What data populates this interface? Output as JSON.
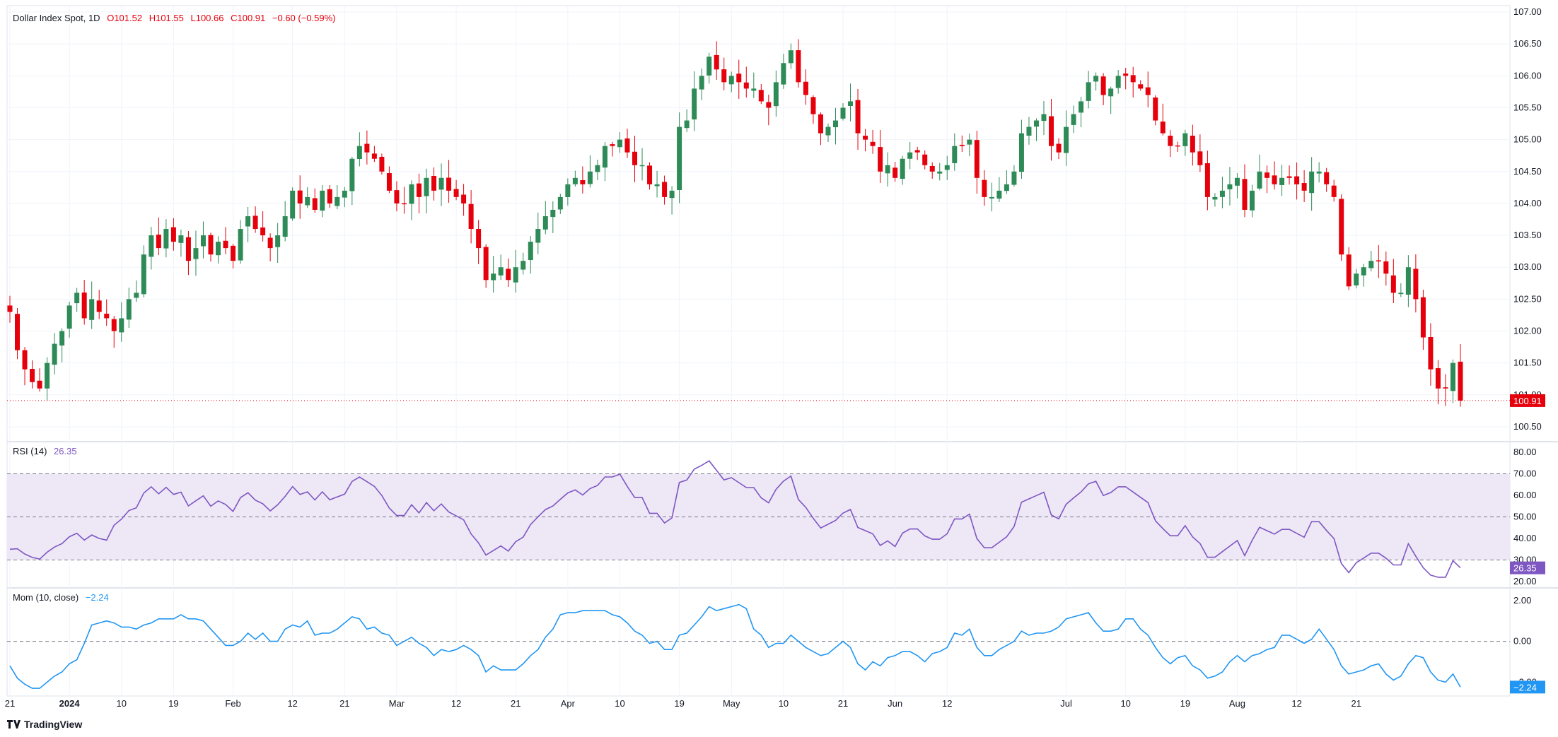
{
  "header": {
    "symbol": "Dollar Index Spot, 1D",
    "open": "O101.52",
    "high": "H101.55",
    "low": "L100.66",
    "close": "C100.91",
    "change": "−0.60 (−0.59%)"
  },
  "rsi_header": {
    "label": "RSI (14)",
    "value": "26.35"
  },
  "mom_header": {
    "label": "Mom (10, close)",
    "value": "−2.24"
  },
  "brand": "TradingView",
  "colors": {
    "up": "#26a69a",
    "up_body": "#2e8b57",
    "down": "#e5000b",
    "rsi": "#7e57c2",
    "mom": "#2196f3",
    "header_value": "#e5000b",
    "rsi_band": "#ede7f6"
  },
  "price_badge": "100.91",
  "rsi_badge": "26.35",
  "mom_badge": "−2.24",
  "chart_data": [
    {
      "type": "candlestick",
      "title": "Dollar Index Spot, 1D",
      "ylim": [
        100.3,
        107.1
      ],
      "y_ticks": [
        "107.00",
        "106.50",
        "106.00",
        "105.50",
        "105.00",
        "104.50",
        "104.00",
        "103.50",
        "103.00",
        "102.50",
        "102.00",
        "101.50",
        "101.00",
        "100.50"
      ],
      "last_price": 100.91,
      "x_ticks": [
        "21",
        "2024",
        "10",
        "19",
        "Feb",
        "12",
        "21",
        "Mar",
        "12",
        "21",
        "Apr",
        "10",
        "19",
        "May",
        "10",
        "21",
        "Jun",
        "12",
        "Jul",
        "10",
        "19",
        "Aug",
        "12",
        "21"
      ],
      "close": [
        102.3,
        101.7,
        101.4,
        101.2,
        101.1,
        101.5,
        101.8,
        102.0,
        102.4,
        102.6,
        102.2,
        102.5,
        102.3,
        102.2,
        102.0,
        102.2,
        102.5,
        102.6,
        103.2,
        103.5,
        103.3,
        103.6,
        103.4,
        103.5,
        103.1,
        103.3,
        103.5,
        103.2,
        103.4,
        103.3,
        103.1,
        103.6,
        103.8,
        103.6,
        103.5,
        103.3,
        103.5,
        103.8,
        104.2,
        104.0,
        104.1,
        103.9,
        104.2,
        104.0,
        104.1,
        104.2,
        104.7,
        104.9,
        104.8,
        104.7,
        104.5,
        104.2,
        104.0,
        104.0,
        104.3,
        104.1,
        104.4,
        104.2,
        104.4,
        104.2,
        104.1,
        104.0,
        103.6,
        103.3,
        102.8,
        102.9,
        103.0,
        102.8,
        103.0,
        103.1,
        103.4,
        103.6,
        103.8,
        103.9,
        104.1,
        104.3,
        104.4,
        104.3,
        104.5,
        104.6,
        104.9,
        104.9,
        105.0,
        104.8,
        104.6,
        104.6,
        104.3,
        104.3,
        104.1,
        104.2,
        105.2,
        105.3,
        105.8,
        106.0,
        106.3,
        106.1,
        105.9,
        106.0,
        105.9,
        105.8,
        105.8,
        105.6,
        105.5,
        105.9,
        106.2,
        106.4,
        105.9,
        105.7,
        105.4,
        105.1,
        105.2,
        105.3,
        105.5,
        105.6,
        105.1,
        105.0,
        104.9,
        104.5,
        104.6,
        104.4,
        104.7,
        104.8,
        104.8,
        104.6,
        104.5,
        104.5,
        104.6,
        104.9,
        104.9,
        105.0,
        104.4,
        104.1,
        104.1,
        104.2,
        104.3,
        104.5,
        105.1,
        105.2,
        105.3,
        105.4,
        104.9,
        104.8,
        105.2,
        105.4,
        105.6,
        105.9,
        106.0,
        105.7,
        105.8,
        106.0,
        106.0,
        105.9,
        105.8,
        105.7,
        105.3,
        105.1,
        104.9,
        104.9,
        105.1,
        104.8,
        104.6,
        104.1,
        104.1,
        104.2,
        104.3,
        104.4,
        103.9,
        104.2,
        104.5,
        104.4,
        104.3,
        104.4,
        104.4,
        104.3,
        104.2,
        104.5,
        104.5,
        104.3,
        104.1,
        103.2,
        102.7,
        102.9,
        103.0,
        103.1,
        103.1,
        102.9,
        102.6,
        102.6,
        103.0,
        102.5,
        101.9,
        101.4,
        101.1,
        101.1,
        101.5,
        100.91
      ],
      "note_ohlc": "open/high/low of each candle approximated from close series"
    },
    {
      "type": "line",
      "title": "RSI (14)",
      "series_name": "RSI (14)",
      "ylim": [
        20,
        80
      ],
      "y_ticks": [
        "80.00",
        "70.00",
        "60.00",
        "50.00",
        "40.00",
        "30.00",
        "20.00"
      ],
      "bands": [
        30,
        50,
        70
      ],
      "last_value": 26.35
    },
    {
      "type": "line",
      "title": "Mom (10, close)",
      "series_name": "Mom (10, close)",
      "ylim": [
        -2.4,
        2.2
      ],
      "y_ticks": [
        "2.00",
        "0.00",
        "-2.00"
      ],
      "zero_line": 0,
      "last_value": -2.24
    }
  ]
}
